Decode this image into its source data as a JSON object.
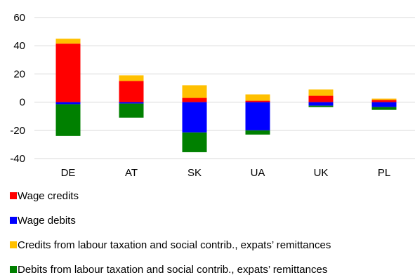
{
  "chart_data": {
    "type": "bar",
    "stacked": true,
    "categories": [
      "DE",
      "AT",
      "SK",
      "UA",
      "UK",
      "PL"
    ],
    "ylim": [
      -40,
      60
    ],
    "yticks": [
      -40,
      -20,
      0,
      20,
      40,
      60
    ],
    "ytick_labels": [
      "-40",
      "-20",
      "0",
      "20",
      "40",
      "60"
    ],
    "grid": true,
    "legend_position": "bottom",
    "series": [
      {
        "name": "Wage credits",
        "color": "#ff0000",
        "sign": "positive",
        "values": [
          41.5,
          15.0,
          3.0,
          1.0,
          4.5,
          1.5
        ]
      },
      {
        "name": "Wage debits",
        "color": "#0000ff",
        "sign": "negative",
        "values": [
          -1.5,
          -1.0,
          -21.5,
          -20.0,
          -2.5,
          -3.5
        ]
      },
      {
        "name": "Credits from labour taxation and social contrib., expats’ remittances",
        "color": "#ffc000",
        "sign": "positive",
        "values": [
          3.5,
          4.0,
          9.0,
          4.5,
          4.5,
          1.0
        ]
      },
      {
        "name": "Debits from labour taxation and social contrib., expats’ remittances",
        "color": "#008000",
        "sign": "negative",
        "values": [
          -22.5,
          -10.0,
          -14.0,
          -3.0,
          -1.0,
          -2.0
        ]
      }
    ]
  }
}
